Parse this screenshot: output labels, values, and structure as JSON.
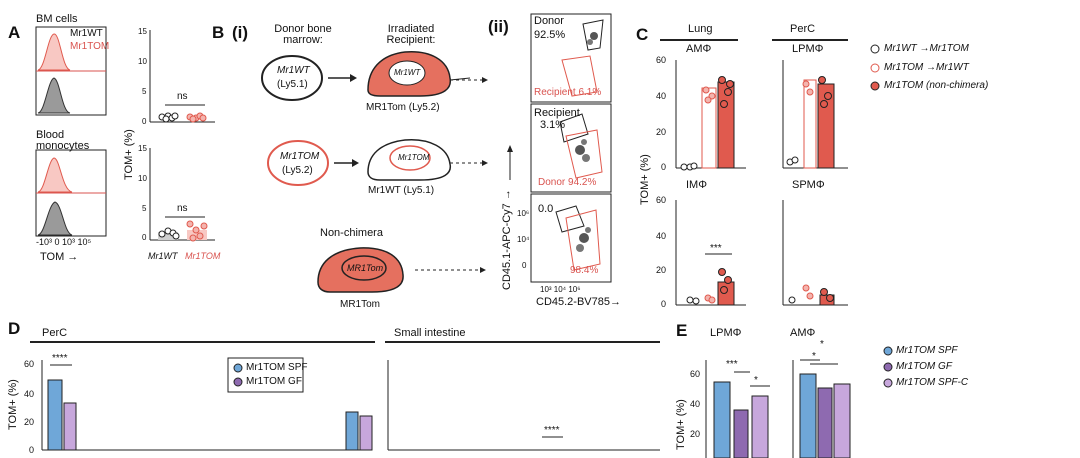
{
  "colors": {
    "red": "#e05a4e",
    "pink": "#f4b4ae",
    "blue": "#6fa7d8",
    "purple": "#8e6ab0",
    "lightpurple": "#c7a7dc",
    "grey": "#9a9a9a"
  },
  "panelA": {
    "label": "A",
    "bm": "BM cells",
    "blood": "Blood monocytes",
    "wt": "Mr1WT",
    "tom": "Mr1TOM",
    "tom_axis": "TOM →",
    "x_ticks": "-10³ 0 10³  10⁵",
    "y_label": "TOM+ (%)",
    "ns1": "ns",
    "ns2": "ns",
    "yticks_top": [
      "15",
      "10",
      "5",
      "0"
    ],
    "yticks_bottom": [
      "15",
      "10",
      "5",
      "0"
    ],
    "x_wt": "Mr1WT",
    "x_tom": "Mr1TOM"
  },
  "panelB": {
    "label": "B",
    "sub_i": "(i)",
    "sub_ii": "(ii)",
    "donor_header": "Donor bone marrow:",
    "recipient_header": "Irradiated Recipient:",
    "row1_donor": "Mr1WT",
    "row1_donor_sub": "(Ly5.1)",
    "row1_recip_inner": "Mr1WT",
    "row1_recip": "MR1Tom (Ly5.2)",
    "row2_donor": "Mr1TOM",
    "row2_donor_sub": "(Ly5.2)",
    "row2_recip_inner": "Mr1TOM",
    "row2_recip": "Mr1WT (Ly5.1)",
    "nonchimera": "Non-chimera",
    "nc_inner": "MR1Tom",
    "nc_label": "MR1Tom",
    "facs1_top": "Donor",
    "facs1_top_val": "92.5%",
    "facs1_bottom": "Recipient 6.1%",
    "facs2_top": "Recipient",
    "facs2_top_val": "3.1%",
    "facs2_bottom": "Donor 94.2%",
    "facs3_top": "0.0",
    "facs3_bottom": "98.4%",
    "y_axis": "CD45.1-APC-Cy7 →",
    "x_axis": "CD45.2-BV785→",
    "yt1": "10⁶",
    "yt2": "10⁴",
    "yt3": "0",
    "xt": "10³ 10⁴  10⁶"
  },
  "panelC": {
    "label": "C",
    "lung": "Lung",
    "perc": "PerC",
    "am": "AMΦ",
    "lpm": "LPMΦ",
    "im": "IMΦ",
    "spm": "SPMΦ",
    "y_label": "TOM+ (%)",
    "yticks": [
      "60",
      "40",
      "20",
      "0"
    ],
    "sig": "***",
    "legend": [
      "Mr1WT →Mr1TOM",
      "Mr1TOM →Mr1WT",
      "Mr1TOM (non-chimera)"
    ]
  },
  "panelD": {
    "label": "D",
    "perc": "PerC",
    "si": "Small intestine",
    "y_label": "TOM+ (%)",
    "yticks": [
      "60",
      "40",
      "20",
      "0"
    ],
    "sig1": "****",
    "sig2": "****",
    "legend": [
      "Mr1TOM SPF",
      "Mr1TOM GF"
    ]
  },
  "panelE": {
    "label": "E",
    "lpm": "LPMΦ",
    "am": "AMΦ",
    "y_label": "TOM+ (%)",
    "yticks": [
      "60",
      "40",
      "20"
    ],
    "sig_lpm": [
      "***",
      "*"
    ],
    "sig_am": [
      "*",
      "*"
    ],
    "legend": [
      "Mr1TOM SPF",
      "Mr1TOM GF",
      "Mr1TOM SPF-C"
    ]
  }
}
